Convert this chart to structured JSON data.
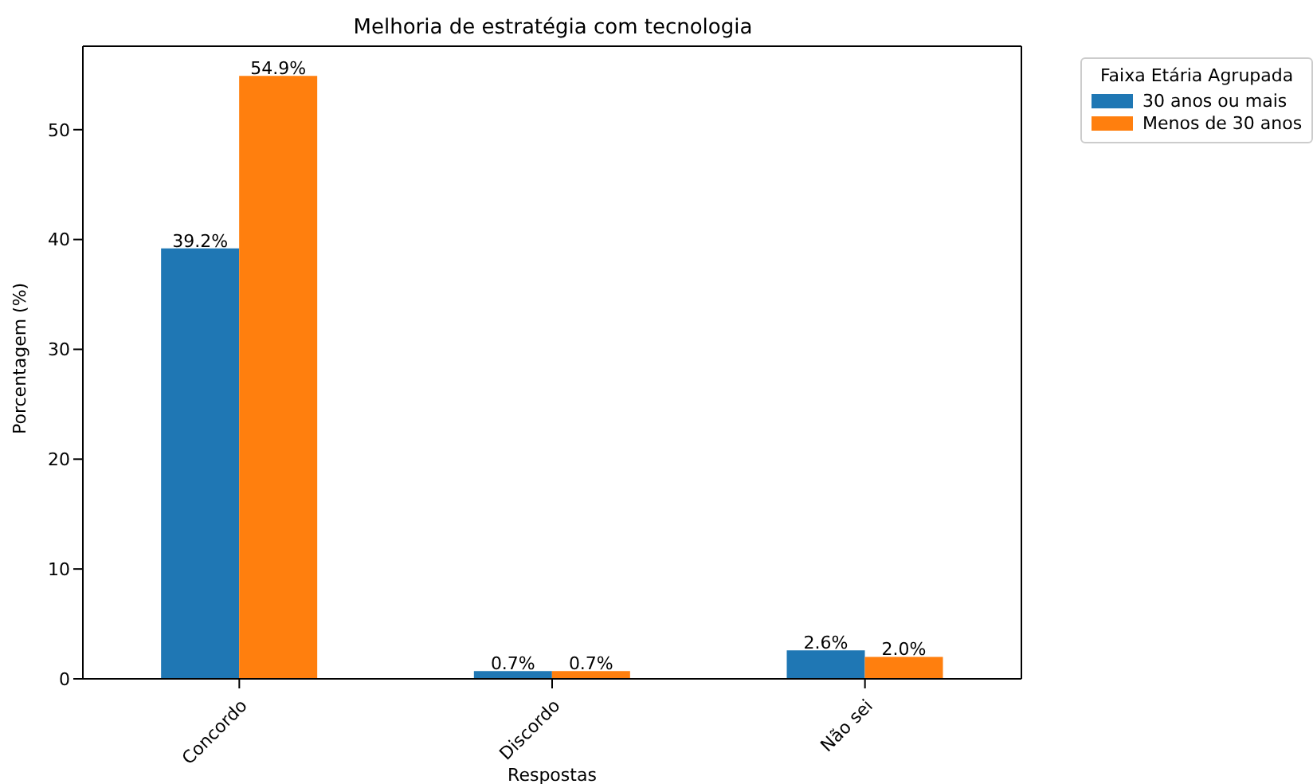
{
  "chart_data": {
    "type": "bar",
    "title": "Melhoria de estratégia com tecnologia",
    "xlabel": "Respostas",
    "ylabel": "Porcentagem (%)",
    "legend_title": "Faixa Etária Agrupada",
    "categories": [
      "Concordo",
      "Discordo",
      "Não sei"
    ],
    "series": [
      {
        "name": "30 anos ou mais",
        "color": "#1f77b4",
        "values": [
          39.2,
          0.7,
          2.6
        ],
        "value_labels": [
          "39.2%",
          "0.7%",
          "2.6%"
        ]
      },
      {
        "name": "Menos de 30 anos",
        "color": "#ff7f0e",
        "values": [
          54.9,
          0.7,
          2.0
        ],
        "value_labels": [
          "54.9%",
          "0.7%",
          "2.0%"
        ]
      }
    ],
    "ylim": [
      0,
      57.6
    ],
    "yticks": [
      0,
      10,
      20,
      30,
      40,
      50
    ],
    "legend": "top right"
  }
}
